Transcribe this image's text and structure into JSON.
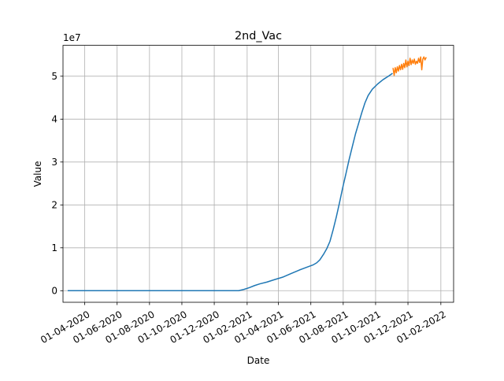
{
  "chart_data": {
    "type": "line",
    "title": "2nd_Vac",
    "xlabel": "Date",
    "ylabel": "Value",
    "y_offset_label": "1e7",
    "grid": true,
    "xlim": [
      "2020-02-20",
      "2022-02-25"
    ],
    "ylim": [
      -0.27,
      5.72
    ],
    "x_ticks": [
      {
        "date": "2020-04-01",
        "label": "01-04-2020"
      },
      {
        "date": "2020-06-01",
        "label": "01-06-2020"
      },
      {
        "date": "2020-08-01",
        "label": "01-08-2020"
      },
      {
        "date": "2020-10-01",
        "label": "01-10-2020"
      },
      {
        "date": "2020-12-01",
        "label": "01-12-2020"
      },
      {
        "date": "2021-02-01",
        "label": "01-02-2021"
      },
      {
        "date": "2021-04-01",
        "label": "01-04-2021"
      },
      {
        "date": "2021-06-01",
        "label": "01-06-2021"
      },
      {
        "date": "2021-08-01",
        "label": "01-08-2021"
      },
      {
        "date": "2021-10-01",
        "label": "01-10-2021"
      },
      {
        "date": "2021-12-01",
        "label": "01-12-2021"
      },
      {
        "date": "2022-02-01",
        "label": "01-02-2022"
      }
    ],
    "y_ticks": [
      {
        "value": 0,
        "label": "0"
      },
      {
        "value": 1,
        "label": "1"
      },
      {
        "value": 2,
        "label": "2"
      },
      {
        "value": 3,
        "label": "3"
      },
      {
        "value": 4,
        "label": "4"
      },
      {
        "value": 5,
        "label": "5"
      }
    ],
    "series": [
      {
        "color": "#1f77b4",
        "points": [
          [
            "2020-03-01",
            0
          ],
          [
            "2020-07-01",
            0
          ],
          [
            "2020-11-01",
            0
          ],
          [
            "2021-01-16",
            0
          ],
          [
            "2021-01-26",
            0.03
          ],
          [
            "2021-02-05",
            0.07
          ],
          [
            "2021-02-15",
            0.12
          ],
          [
            "2021-02-25",
            0.16
          ],
          [
            "2021-03-10",
            0.2
          ],
          [
            "2021-03-25",
            0.26
          ],
          [
            "2021-04-10",
            0.32
          ],
          [
            "2021-04-25",
            0.4
          ],
          [
            "2021-05-10",
            0.48
          ],
          [
            "2021-05-25",
            0.55
          ],
          [
            "2021-06-05",
            0.6
          ],
          [
            "2021-06-12",
            0.65
          ],
          [
            "2021-06-18",
            0.72
          ],
          [
            "2021-06-25",
            0.85
          ],
          [
            "2021-07-01",
            0.98
          ],
          [
            "2021-07-07",
            1.15
          ],
          [
            "2021-07-13",
            1.42
          ],
          [
            "2021-07-19",
            1.72
          ],
          [
            "2021-07-25",
            2.05
          ],
          [
            "2021-07-31",
            2.4
          ],
          [
            "2021-08-06",
            2.72
          ],
          [
            "2021-08-12",
            3.05
          ],
          [
            "2021-08-18",
            3.35
          ],
          [
            "2021-08-24",
            3.65
          ],
          [
            "2021-08-30",
            3.9
          ],
          [
            "2021-09-05",
            4.15
          ],
          [
            "2021-09-11",
            4.38
          ],
          [
            "2021-09-17",
            4.55
          ],
          [
            "2021-09-25",
            4.7
          ],
          [
            "2021-10-05",
            4.82
          ],
          [
            "2021-10-15",
            4.92
          ],
          [
            "2021-10-25",
            5.0
          ],
          [
            "2021-11-01",
            5.06
          ]
        ]
      },
      {
        "color": "#ff7f0e",
        "points": [
          [
            "2021-11-03",
            5.18
          ],
          [
            "2021-11-05",
            5.02
          ],
          [
            "2021-11-07",
            5.2
          ],
          [
            "2021-11-09",
            5.08
          ],
          [
            "2021-11-11",
            5.22
          ],
          [
            "2021-11-13",
            5.12
          ],
          [
            "2021-11-15",
            5.25
          ],
          [
            "2021-11-17",
            5.15
          ],
          [
            "2021-11-19",
            5.28
          ],
          [
            "2021-11-21",
            5.16
          ],
          [
            "2021-11-23",
            5.3
          ],
          [
            "2021-11-25",
            5.2
          ],
          [
            "2021-11-27",
            5.38
          ],
          [
            "2021-11-29",
            5.22
          ],
          [
            "2021-12-01",
            5.35
          ],
          [
            "2021-12-03",
            5.25
          ],
          [
            "2021-12-05",
            5.42
          ],
          [
            "2021-12-07",
            5.27
          ],
          [
            "2021-12-09",
            5.38
          ],
          [
            "2021-12-11",
            5.3
          ],
          [
            "2021-12-13",
            5.4
          ],
          [
            "2021-12-15",
            5.28
          ],
          [
            "2021-12-17",
            5.35
          ],
          [
            "2021-12-19",
            5.3
          ],
          [
            "2021-12-21",
            5.42
          ],
          [
            "2021-12-23",
            5.32
          ],
          [
            "2021-12-25",
            5.45
          ],
          [
            "2021-12-27",
            5.15
          ],
          [
            "2021-12-29",
            5.4
          ],
          [
            "2021-12-31",
            5.45
          ],
          [
            "2022-01-02",
            5.38
          ],
          [
            "2022-01-04",
            5.43
          ]
        ]
      }
    ]
  }
}
